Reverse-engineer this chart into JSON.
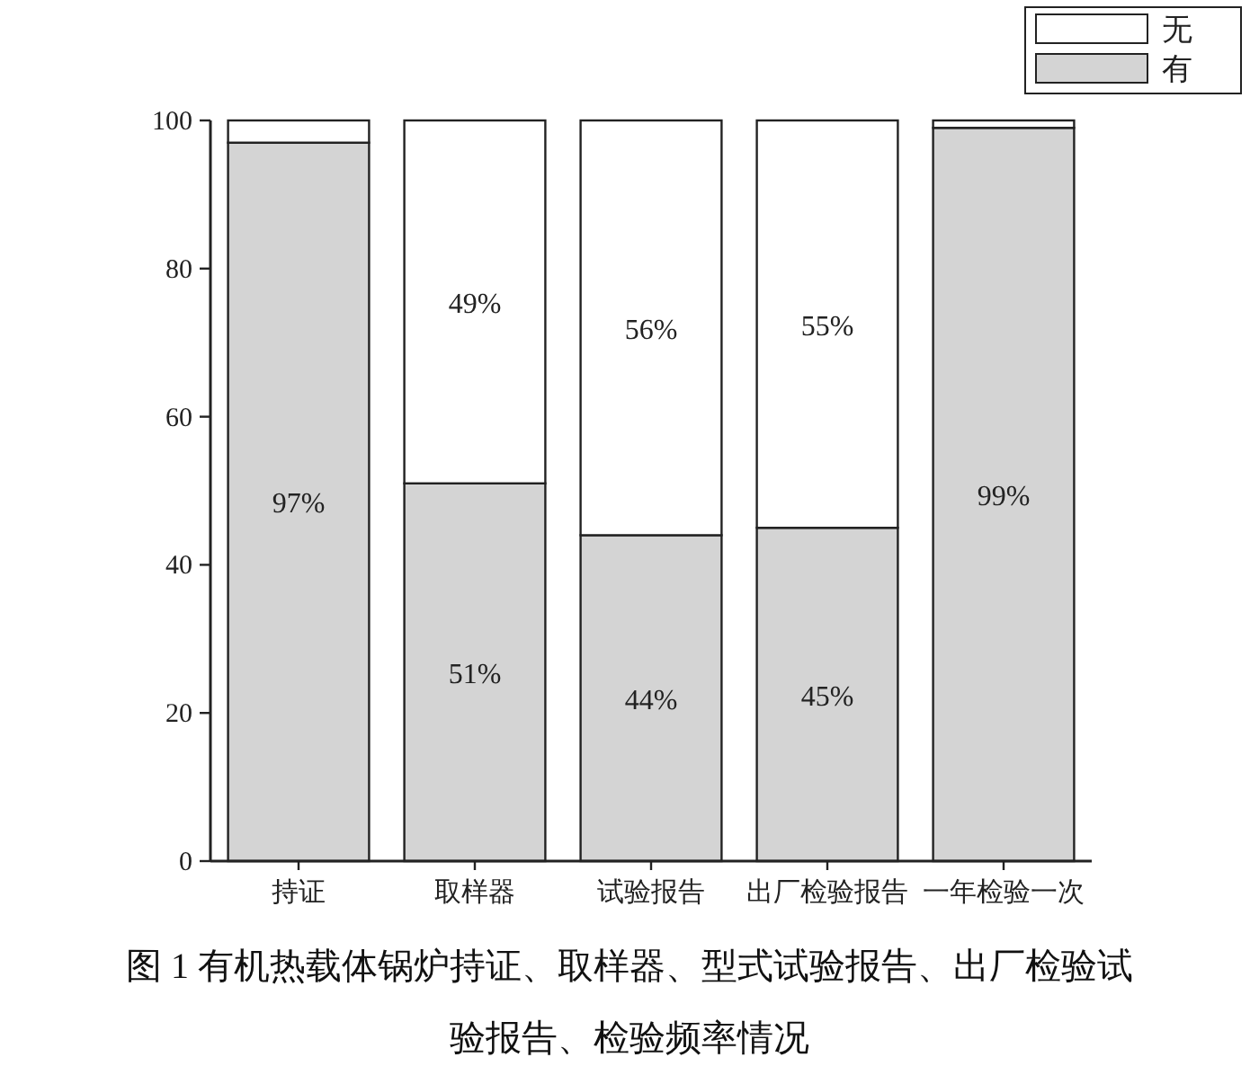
{
  "chart_data": {
    "type": "bar",
    "stacked": true,
    "title": "图 1 有机热载体锅炉持证、取样器、型式试验报告、出厂检验试验报告、检验频率情况",
    "categories": [
      "持证",
      "取样器",
      "试验报告",
      "出厂检验报告",
      "一年检验一次"
    ],
    "series": [
      {
        "name": "有",
        "color": "#d4d4d4",
        "values": [
          97,
          51,
          44,
          45,
          99
        ],
        "value_labels": [
          "97%",
          "51%",
          "44%",
          "45%",
          "99%"
        ]
      },
      {
        "name": "无",
        "color": "#ffffff",
        "values": [
          3,
          49,
          56,
          55,
          1
        ],
        "value_labels": [
          null,
          "49%",
          "56%",
          "55%",
          null
        ]
      }
    ],
    "ylim": [
      0,
      100
    ],
    "yticks": [
      0,
      20,
      40,
      60,
      80,
      100
    ],
    "legend": "top right"
  }
}
